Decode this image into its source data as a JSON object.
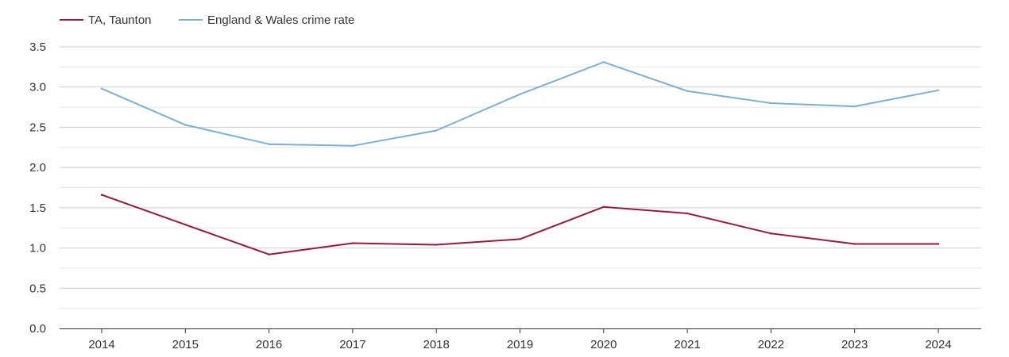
{
  "chart_data": {
    "type": "line",
    "x": [
      2014,
      2015,
      2016,
      2017,
      2018,
      2019,
      2020,
      2021,
      2022,
      2023,
      2024
    ],
    "series": [
      {
        "name": "TA, Taunton",
        "color": "#a0153e",
        "values": [
          1.66,
          1.29,
          0.92,
          1.06,
          1.04,
          1.11,
          1.51,
          1.43,
          1.18,
          1.05,
          1.05
        ]
      },
      {
        "name": "England & Wales crime rate",
        "color": "#7bb0d6",
        "values": [
          2.98,
          2.53,
          2.29,
          2.27,
          2.46,
          2.91,
          3.31,
          2.95,
          2.8,
          2.76,
          2.96
        ]
      }
    ],
    "ylim": [
      0,
      3.5
    ],
    "yticks": [
      "0.0",
      "0.5",
      "1.0",
      "1.5",
      "2.0",
      "2.5",
      "3.0",
      "3.5"
    ],
    "xticks": [
      "2014",
      "2015",
      "2016",
      "2017",
      "2018",
      "2019",
      "2020",
      "2021",
      "2022",
      "2023",
      "2024"
    ],
    "grid": true,
    "legend_position": "top-left",
    "title": "",
    "xlabel": "",
    "ylabel": ""
  }
}
